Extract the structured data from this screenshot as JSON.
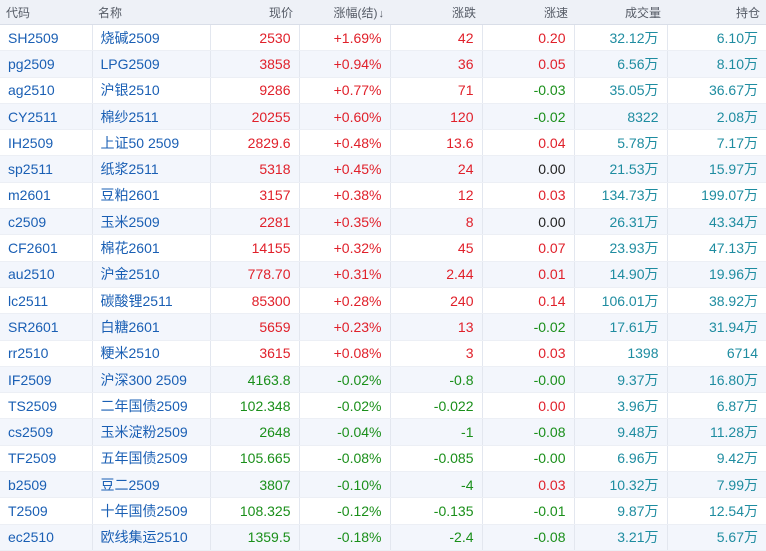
{
  "colors": {
    "up": "#e0202a",
    "down": "#1a8f1a",
    "flat": "#222222",
    "link": "#1a5fb4",
    "volume": "#1e8ca0",
    "header_bg": "#eef1f7",
    "row_alt_bg": "#f3f6fc"
  },
  "header": {
    "code": "代码",
    "name": "名称",
    "price": "现价",
    "change_pct": "涨幅(结)",
    "sort_icon": "↓",
    "change": "涨跌",
    "speed": "涨速",
    "volume": "成交量",
    "open_interest": "持仓"
  },
  "rows": [
    {
      "code": "SH2509",
      "name": "烧碱2509",
      "price": "2530",
      "change_pct": "+1.69%",
      "change": "42",
      "speed": "0.20",
      "volume": "32.12万",
      "open_interest": "6.10万",
      "trend": "up",
      "speed_trend": "up"
    },
    {
      "code": "pg2509",
      "name": "LPG2509",
      "price": "3858",
      "change_pct": "+0.94%",
      "change": "36",
      "speed": "0.05",
      "volume": "6.56万",
      "open_interest": "8.10万",
      "trend": "up",
      "speed_trend": "up"
    },
    {
      "code": "ag2510",
      "name": "沪银2510",
      "price": "9286",
      "change_pct": "+0.77%",
      "change": "71",
      "speed": "-0.03",
      "volume": "35.05万",
      "open_interest": "36.67万",
      "trend": "up",
      "speed_trend": "down"
    },
    {
      "code": "CY2511",
      "name": "棉纱2511",
      "price": "20255",
      "change_pct": "+0.60%",
      "change": "120",
      "speed": "-0.02",
      "volume": "8322",
      "open_interest": "2.08万",
      "trend": "up",
      "speed_trend": "down"
    },
    {
      "code": "IH2509",
      "name": "上证50 2509",
      "price": "2829.6",
      "change_pct": "+0.48%",
      "change": "13.6",
      "speed": "0.04",
      "volume": "5.78万",
      "open_interest": "7.17万",
      "trend": "up",
      "speed_trend": "up"
    },
    {
      "code": "sp2511",
      "name": "纸浆2511",
      "price": "5318",
      "change_pct": "+0.45%",
      "change": "24",
      "speed": "0.00",
      "volume": "21.53万",
      "open_interest": "15.97万",
      "trend": "up",
      "speed_trend": "flat"
    },
    {
      "code": "m2601",
      "name": "豆粕2601",
      "price": "3157",
      "change_pct": "+0.38%",
      "change": "12",
      "speed": "0.03",
      "volume": "134.73万",
      "open_interest": "199.07万",
      "trend": "up",
      "speed_trend": "up"
    },
    {
      "code": "c2509",
      "name": "玉米2509",
      "price": "2281",
      "change_pct": "+0.35%",
      "change": "8",
      "speed": "0.00",
      "volume": "26.31万",
      "open_interest": "43.34万",
      "trend": "up",
      "speed_trend": "flat"
    },
    {
      "code": "CF2601",
      "name": "棉花2601",
      "price": "14155",
      "change_pct": "+0.32%",
      "change": "45",
      "speed": "0.07",
      "volume": "23.93万",
      "open_interest": "47.13万",
      "trend": "up",
      "speed_trend": "up"
    },
    {
      "code": "au2510",
      "name": "沪金2510",
      "price": "778.70",
      "change_pct": "+0.31%",
      "change": "2.44",
      "speed": "0.01",
      "volume": "14.90万",
      "open_interest": "19.96万",
      "trend": "up",
      "speed_trend": "up"
    },
    {
      "code": "lc2511",
      "name": "碳酸锂2511",
      "price": "85300",
      "change_pct": "+0.28%",
      "change": "240",
      "speed": "0.14",
      "volume": "106.01万",
      "open_interest": "38.92万",
      "trend": "up",
      "speed_trend": "up"
    },
    {
      "code": "SR2601",
      "name": "白糖2601",
      "price": "5659",
      "change_pct": "+0.23%",
      "change": "13",
      "speed": "-0.02",
      "volume": "17.61万",
      "open_interest": "31.94万",
      "trend": "up",
      "speed_trend": "down"
    },
    {
      "code": "rr2510",
      "name": "粳米2510",
      "price": "3615",
      "change_pct": "+0.08%",
      "change": "3",
      "speed": "0.03",
      "volume": "1398",
      "open_interest": "6714",
      "trend": "up",
      "speed_trend": "up"
    },
    {
      "code": "IF2509",
      "name": "沪深300 2509",
      "price": "4163.8",
      "change_pct": "-0.02%",
      "change": "-0.8",
      "speed": "-0.00",
      "volume": "9.37万",
      "open_interest": "16.80万",
      "trend": "down",
      "speed_trend": "down"
    },
    {
      "code": "TS2509",
      "name": "二年国债2509",
      "price": "102.348",
      "change_pct": "-0.02%",
      "change": "-0.022",
      "speed": "0.00",
      "volume": "3.96万",
      "open_interest": "6.87万",
      "trend": "down",
      "speed_trend": "up"
    },
    {
      "code": "cs2509",
      "name": "玉米淀粉2509",
      "price": "2648",
      "change_pct": "-0.04%",
      "change": "-1",
      "speed": "-0.08",
      "volume": "9.48万",
      "open_interest": "11.28万",
      "trend": "down",
      "speed_trend": "down"
    },
    {
      "code": "TF2509",
      "name": "五年国债2509",
      "price": "105.665",
      "change_pct": "-0.08%",
      "change": "-0.085",
      "speed": "-0.00",
      "volume": "6.96万",
      "open_interest": "9.42万",
      "trend": "down",
      "speed_trend": "down"
    },
    {
      "code": "b2509",
      "name": "豆二2509",
      "price": "3807",
      "change_pct": "-0.10%",
      "change": "-4",
      "speed": "0.03",
      "volume": "10.32万",
      "open_interest": "7.99万",
      "trend": "down",
      "speed_trend": "up"
    },
    {
      "code": "T2509",
      "name": "十年国债2509",
      "price": "108.325",
      "change_pct": "-0.12%",
      "change": "-0.135",
      "speed": "-0.01",
      "volume": "9.87万",
      "open_interest": "12.54万",
      "trend": "down",
      "speed_trend": "down"
    },
    {
      "code": "ec2510",
      "name": "欧线集运2510",
      "price": "1359.5",
      "change_pct": "-0.18%",
      "change": "-2.4",
      "speed": "-0.08",
      "volume": "3.21万",
      "open_interest": "5.67万",
      "trend": "down",
      "speed_trend": "down"
    }
  ]
}
